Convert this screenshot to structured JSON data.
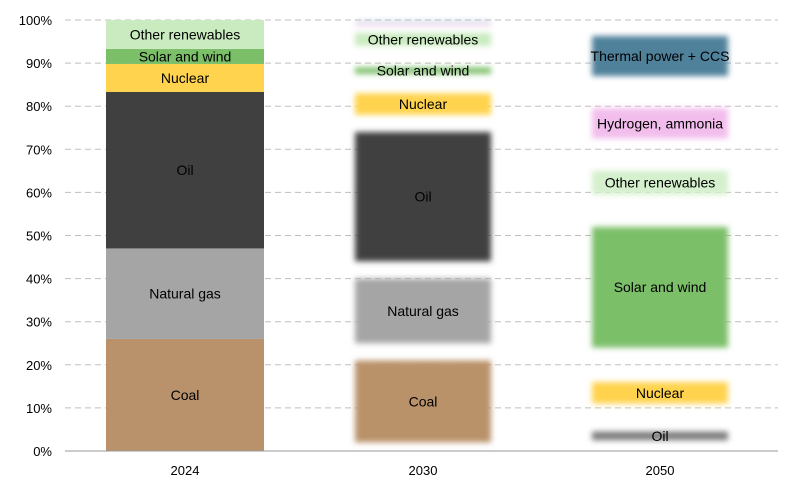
{
  "chart_data": {
    "type": "bar",
    "stacked": true,
    "title": "",
    "xlabel": "",
    "ylabel": "",
    "ylim": [
      0,
      100
    ],
    "y_ticks": [
      "0%",
      "10%",
      "20%",
      "30%",
      "40%",
      "50%",
      "60%",
      "70%",
      "80%",
      "90%",
      "100%"
    ],
    "grid": "horizontal dashed",
    "legend": "none (segments labeled inline)",
    "categories": [
      "2024",
      "2030",
      "2050"
    ],
    "bars": [
      {
        "category": "2024",
        "blurred": false,
        "segments": [
          {
            "name": "Coal",
            "range": [
              0,
              26
            ],
            "color": "#b9926b",
            "label": "Coal"
          },
          {
            "name": "Natural gas",
            "range": [
              26,
              47
            ],
            "color": "#a5a5a5",
            "label": "Natural gas"
          },
          {
            "name": "Oil",
            "range": [
              47,
              83.3
            ],
            "color": "#404040",
            "label": "Oil"
          },
          {
            "name": "Nuclear",
            "range": [
              83.3,
              89.8
            ],
            "color": "#ffd34e",
            "label": "Nuclear"
          },
          {
            "name": "Solar and wind",
            "range": [
              89.8,
              93.3
            ],
            "color": "#7cbf69",
            "label": "Solar and wind"
          },
          {
            "name": "Other renewables",
            "range": [
              93.3,
              100
            ],
            "color": "#c9ebbf",
            "label": "Other renewables"
          }
        ]
      },
      {
        "category": "2030",
        "blurred": true,
        "segments": [
          {
            "name": "Coal",
            "range": [
              2,
              21
            ],
            "color": "#b9926b",
            "label": "Coal"
          },
          {
            "name": "Natural gas",
            "range": [
              25,
              40
            ],
            "color": "#a5a5a5",
            "label": "Natural gas"
          },
          {
            "name": "Oil",
            "range": [
              44,
              74
            ],
            "color": "#404040",
            "label": "Oil"
          },
          {
            "name": "Nuclear",
            "range": [
              78,
              83
            ],
            "color": "#ffd34e",
            "label": "Nuclear"
          },
          {
            "name": "Solar and wind",
            "range": [
              87.5,
              89
            ],
            "color": "#7cbf69",
            "label": "Solar and wind"
          },
          {
            "name": "Other renewables",
            "range": [
              94,
              97
            ],
            "color": "#c9ebbf",
            "label": "Other renewables"
          },
          {
            "name": "Hydrogen, ammonia",
            "range": [
              98.6,
              98.9
            ],
            "color": "#f0b4e8",
            "label": ""
          },
          {
            "name": "Thermal power + CCS",
            "range": [
              99.4,
              99.7
            ],
            "color": "#8fb3c8",
            "label": ""
          }
        ]
      },
      {
        "category": "2050",
        "blurred": true,
        "segments": [
          {
            "name": "Oil",
            "range": [
              2.5,
              4.5
            ],
            "color": "#7a7a7a",
            "label": "Oil"
          },
          {
            "name": "Nuclear",
            "range": [
              11,
              16
            ],
            "color": "#ffd34e",
            "label": "Nuclear"
          },
          {
            "name": "Solar and wind",
            "range": [
              24,
              52
            ],
            "color": "#7cbf69",
            "label": "Solar and wind"
          },
          {
            "name": "Other renewables",
            "range": [
              59.5,
              65
            ],
            "color": "#d4f0cc",
            "label": "Other renewables"
          },
          {
            "name": "Hydrogen, ammonia",
            "range": [
              72.5,
              79.5
            ],
            "color": "#f2bdec",
            "label": "Hydrogen, ammonia"
          },
          {
            "name": "Thermal power + CCS",
            "range": [
              87,
              96.3
            ],
            "color": "#4f819b",
            "label": "Thermal power + CCS"
          }
        ]
      }
    ]
  }
}
